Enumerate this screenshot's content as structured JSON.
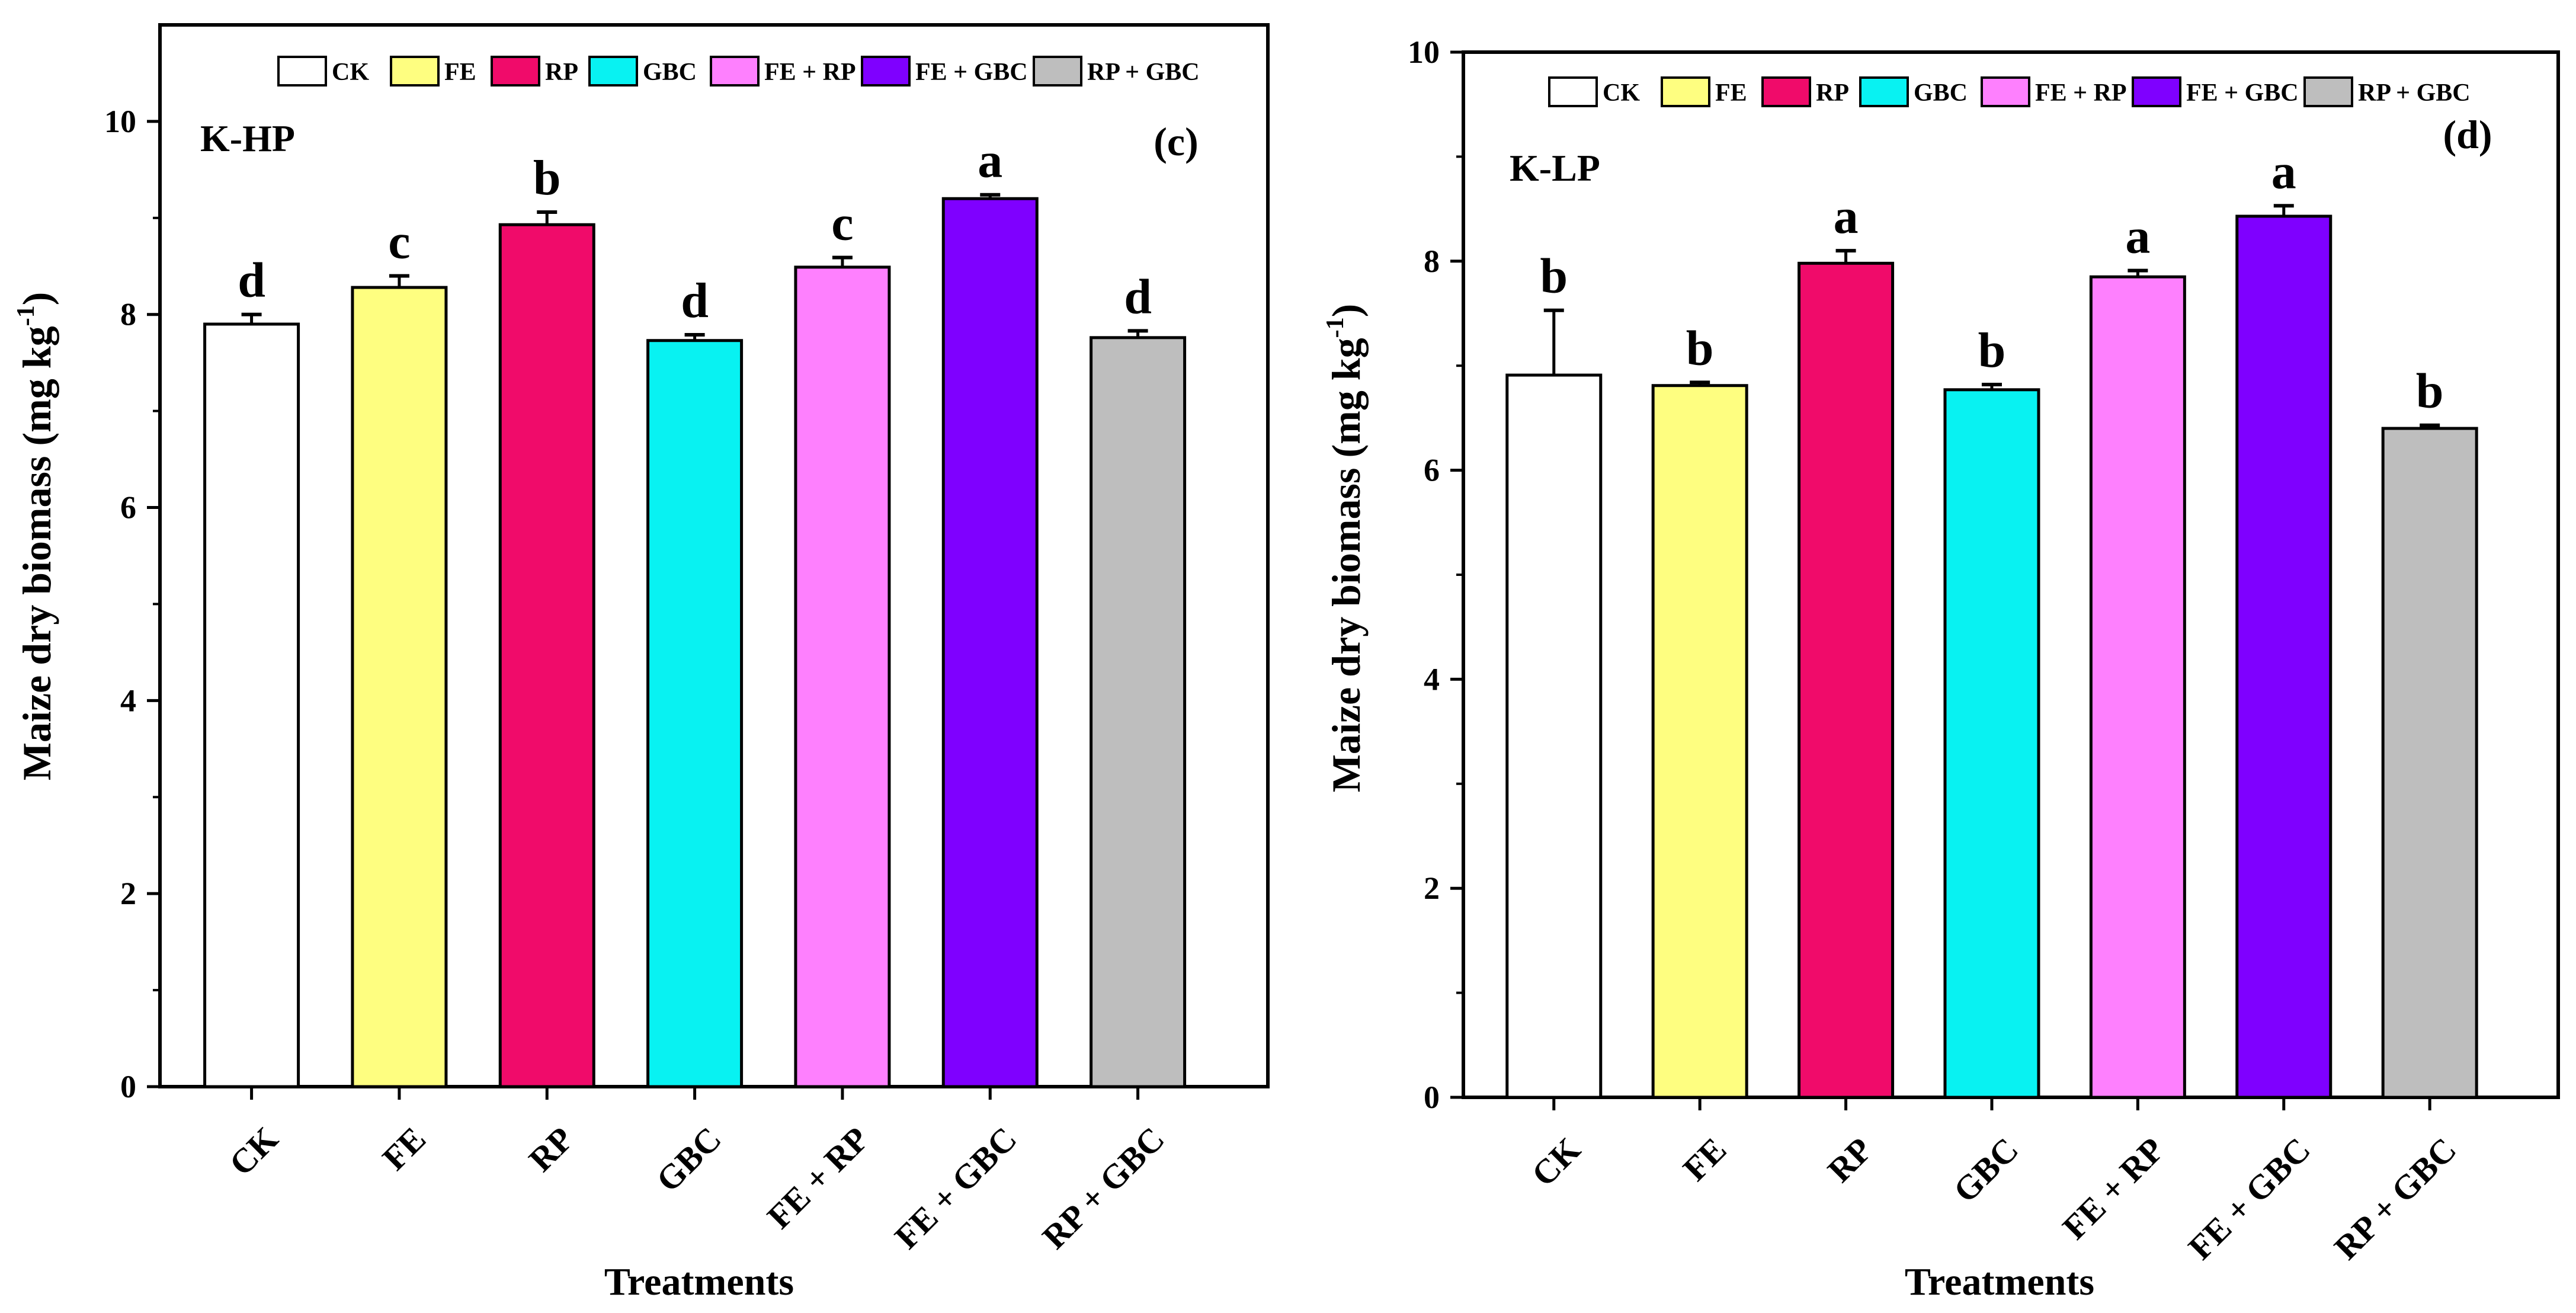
{
  "figure": {
    "xlabel": "Treatments",
    "ylabel_main": "Maize dry biomass (mg kg",
    "ylabel_sup": "-1",
    "ylabel_end": ")"
  },
  "chart_data": [
    {
      "type": "bar",
      "panel_label": "(c)",
      "title": "K-HP",
      "xlabel": "Treatments",
      "ylabel": "Maize dry biomass (mg kg-1)",
      "ylim": [
        0,
        11
      ],
      "yticks": [
        0,
        2,
        4,
        6,
        8,
        10
      ],
      "categories": [
        "CK",
        "FE",
        "RP",
        "GBC",
        "FE + RP",
        "FE + GBC",
        "RP + GBC"
      ],
      "values": [
        7.9,
        8.28,
        8.93,
        7.73,
        8.49,
        9.2,
        7.76
      ],
      "errors": [
        0.1,
        0.12,
        0.13,
        0.06,
        0.1,
        0.04,
        0.07
      ],
      "letters": [
        "d",
        "c",
        "b",
        "d",
        "c",
        "a",
        "d"
      ],
      "colors": [
        "#ffffff",
        "#fefe80",
        "#f00b6a",
        "#08f2f2",
        "#fe80fe",
        "#7f00ff",
        "#bebebe"
      ],
      "legend": [
        "CK",
        "FE",
        "RP",
        "GBC",
        "FE + RP",
        "FE + GBC",
        "RP + GBC"
      ]
    },
    {
      "type": "bar",
      "panel_label": "(d)",
      "title": "K-LP",
      "xlabel": "Treatments",
      "ylabel": "Maize dry biomass (mg kg-1)",
      "ylim": [
        0,
        10
      ],
      "yticks": [
        0,
        2,
        4,
        6,
        8,
        10
      ],
      "categories": [
        "CK",
        "FE",
        "RP",
        "GBC",
        "FE + RP",
        "FE + GBC",
        "RP + GBC"
      ],
      "values": [
        6.91,
        6.81,
        7.98,
        6.77,
        7.85,
        8.43,
        6.4
      ],
      "errors": [
        0.62,
        0.03,
        0.12,
        0.05,
        0.06,
        0.1,
        0.03
      ],
      "letters": [
        "b",
        "b",
        "a",
        "b",
        "a",
        "a",
        "b"
      ],
      "colors": [
        "#ffffff",
        "#fefe80",
        "#f00b6a",
        "#08f2f2",
        "#fe80fe",
        "#7f00ff",
        "#bebebe"
      ],
      "legend": [
        "CK",
        "FE",
        "RP",
        "GBC",
        "FE + RP",
        "FE + GBC",
        "RP + GBC"
      ]
    }
  ]
}
